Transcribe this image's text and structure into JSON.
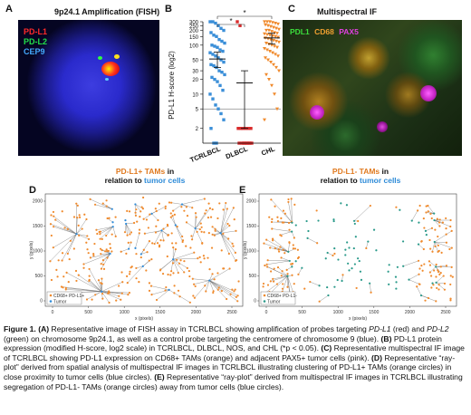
{
  "panelA": {
    "letter": "A",
    "title": "9p24.1 Amplification (FISH)",
    "legend": [
      {
        "text": "PD-L1",
        "color": "#ff2a2a"
      },
      {
        "text": "PD-L2",
        "color": "#22e04a"
      },
      {
        "text": "CEP9",
        "color": "#44aaff"
      }
    ]
  },
  "panelB": {
    "letter": "B",
    "significance": [
      "*",
      "*"
    ]
  },
  "chart_data": {
    "type": "scatter",
    "ylabel": "PD-L1 H-score (log2)",
    "y_ticks": [
      2,
      5,
      10,
      20,
      30,
      50,
      100,
      150,
      200,
      250,
      300
    ],
    "yscale": "log2",
    "ylim": [
      1,
      300
    ],
    "categories": [
      "TCRLBCL",
      "DLBCL",
      "CHL"
    ],
    "colors": [
      "#3b8fd8",
      "#d92b2b",
      "#f08a2c"
    ],
    "means": [
      52,
      17,
      140
    ],
    "sd_low": [
      35,
      2,
      105
    ],
    "sd_high": [
      72,
      30,
      175
    ],
    "points": [
      [
        300,
        300,
        280,
        250,
        220,
        200,
        180,
        160,
        150,
        130,
        120,
        110,
        100,
        95,
        90,
        80,
        75,
        70,
        65,
        60,
        55,
        50,
        45,
        40,
        38,
        35,
        30,
        28,
        25,
        22,
        20,
        18,
        15,
        12,
        10,
        8,
        6,
        5,
        4,
        3,
        2,
        1,
        1
      ],
      [
        300,
        250,
        2,
        2,
        2,
        2,
        2,
        2,
        1,
        1,
        1,
        1,
        1,
        1,
        1,
        1,
        1
      ],
      [
        300,
        300,
        300,
        290,
        280,
        270,
        260,
        250,
        240,
        230,
        220,
        210,
        200,
        200,
        190,
        180,
        175,
        170,
        165,
        160,
        155,
        150,
        145,
        140,
        135,
        130,
        125,
        120,
        115,
        110,
        105,
        100,
        95,
        90,
        85,
        80,
        75,
        70,
        65,
        60,
        55,
        50,
        45,
        40,
        35,
        30,
        25,
        20,
        15,
        10,
        5,
        3
      ]
    ],
    "threshold": 5
  },
  "panelC": {
    "letter": "C",
    "title": "Multispectral IF",
    "legend": [
      {
        "text": "PDL1",
        "color": "#3cdc3c"
      },
      {
        "text": "CD68",
        "color": "#f0a030"
      },
      {
        "text": "PAX5",
        "color": "#e040e0"
      }
    ]
  },
  "panelD": {
    "letter": "D",
    "title_a": "PD-L1+ TAMs",
    "title_b": " in",
    "title_c": "relation to ",
    "title_d": "tumor cells",
    "xlabel": "x (pixels)",
    "ylabel": "y (pixels)",
    "x_ticks": [
      "0",
      "500",
      "1000",
      "1500",
      "2000",
      "2500"
    ],
    "y_ticks": [
      "0",
      "500",
      "1000",
      "1500",
      "2000"
    ],
    "legend": [
      "CD68+ PD-L1+",
      "Tumor"
    ]
  },
  "panelE": {
    "letter": "E",
    "title_a": "PD-L1- TAMs",
    "title_b": " in",
    "title_c": "relation to ",
    "title_d": "tumor cells",
    "xlabel": "x (pixels)",
    "ylabel": "y (pixels)",
    "x_ticks": [
      "0",
      "500",
      "1000",
      "1500",
      "2000",
      "2500"
    ],
    "y_ticks": [
      "0",
      "500",
      "1000",
      "1500",
      "2000"
    ],
    "legend": [
      "CD68+ PD-L1-",
      "Tumor"
    ]
  },
  "caption": {
    "fig": "Figure 1. (A)",
    "s1": " Representative image of FISH assay in TCRLBCL showing amplification of probes targeting ",
    "g1": "PD-L1",
    "s2": " (red) and ",
    "g2": "PD-L2",
    "s3": " (green) on chromosome 9p24.1, as well as a control probe targeting the centromere of chromosome 9 (blue). ",
    "b": "(B)",
    "s4": " PD-L1 protein expression (modified H-score, log2 scale) in TCRLBCL, DLBCL, NOS, and CHL (*p < 0.05). ",
    "c": "(C)",
    "s5": " Representative multispectral IF image of TCRLBCL showing PD-L1 expression on CD68+ TAMs (orange) and adjacent PAX5+ tumor cells (pink). ",
    "d": "(D)",
    "s6": " Representative “ray-plot” derived from spatial analysis of multispectral IF images in TCRLBCL illustrating clustering of PD-L1+ TAMs (orange circles) in close proximity to tumor cells (blue circles). ",
    "e": "(E)",
    "s7": " Representative “ray-plot” derived from multispectral IF images in TCRLBCL illustrating segregation of PD-L1- TAMs (orange circles) away from tumor cells (blue circles)."
  }
}
